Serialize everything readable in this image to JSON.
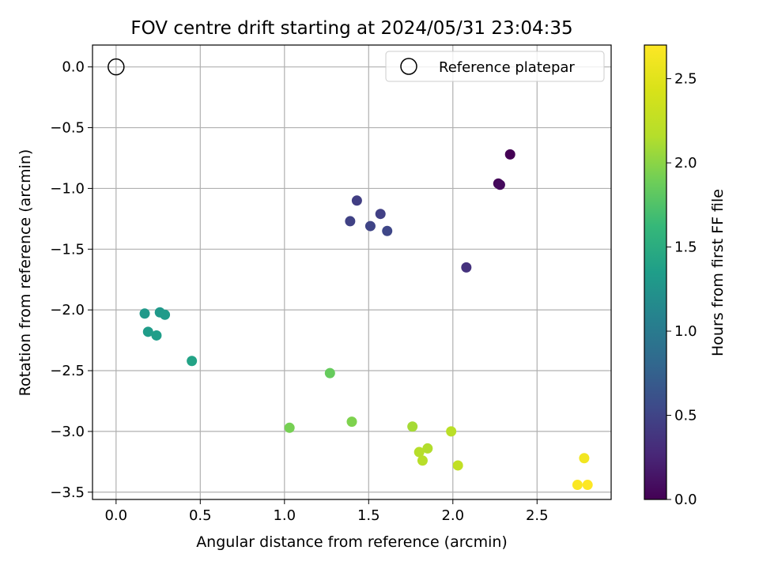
{
  "chart_data": {
    "type": "scatter",
    "title": "FOV centre drift starting at 2024/05/31 23:04:35",
    "xlabel": "Angular distance from reference (arcmin)",
    "ylabel": "Rotation from reference (arcmin)",
    "xlim": [
      -0.14,
      2.94
    ],
    "ylim": [
      -3.56,
      0.18
    ],
    "xticks": [
      0.0,
      0.5,
      1.0,
      1.5,
      2.0,
      2.5
    ],
    "xtick_labels": [
      "0.0",
      "0.5",
      "1.0",
      "1.5",
      "2.0",
      "2.5"
    ],
    "yticks": [
      0.0,
      -0.5,
      -1.0,
      -1.5,
      -2.0,
      -2.5,
      -3.0,
      -3.5
    ],
    "ytick_labels": [
      "0.0",
      "−0.5",
      "−1.0",
      "−1.5",
      "−2.0",
      "−2.5",
      "−3.0",
      "−3.5"
    ],
    "grid": true,
    "legend": {
      "position": "upper-right",
      "entries": [
        {
          "label": "Reference platepar",
          "marker": "open-circle"
        }
      ]
    },
    "reference_point": {
      "x": 0.0,
      "y": 0.0,
      "marker": "open-circle"
    },
    "colorbar": {
      "label": "Hours from first FF file",
      "colormap": "viridis",
      "range": [
        0.0,
        2.7
      ],
      "ticks": [
        0.0,
        0.5,
        1.0,
        1.5,
        2.0,
        2.5
      ],
      "tick_labels": [
        "0.0",
        "0.5",
        "1.0",
        "1.5",
        "2.0",
        "2.5"
      ]
    },
    "points": [
      {
        "x": 2.34,
        "y": -0.72,
        "hours": 0.0
      },
      {
        "x": 2.27,
        "y": -0.96,
        "hours": 0.03
      },
      {
        "x": 2.28,
        "y": -0.97,
        "hours": 0.06
      },
      {
        "x": 2.08,
        "y": -1.65,
        "hours": 0.35
      },
      {
        "x": 1.43,
        "y": -1.1,
        "hours": 0.45
      },
      {
        "x": 1.57,
        "y": -1.21,
        "hours": 0.47
      },
      {
        "x": 1.39,
        "y": -1.27,
        "hours": 0.48
      },
      {
        "x": 1.51,
        "y": -1.31,
        "hours": 0.5
      },
      {
        "x": 1.61,
        "y": -1.35,
        "hours": 0.52
      },
      {
        "x": 0.17,
        "y": -2.03,
        "hours": 1.3
      },
      {
        "x": 0.26,
        "y": -2.02,
        "hours": 1.3
      },
      {
        "x": 0.29,
        "y": -2.04,
        "hours": 1.32
      },
      {
        "x": 0.19,
        "y": -2.18,
        "hours": 1.33
      },
      {
        "x": 0.24,
        "y": -2.21,
        "hours": 1.35
      },
      {
        "x": 0.45,
        "y": -2.42,
        "hours": 1.4
      },
      {
        "x": 1.27,
        "y": -2.52,
        "hours": 1.85
      },
      {
        "x": 1.03,
        "y": -2.97,
        "hours": 1.92
      },
      {
        "x": 1.4,
        "y": -2.92,
        "hours": 1.95
      },
      {
        "x": 1.76,
        "y": -2.96,
        "hours": 2.1
      },
      {
        "x": 1.99,
        "y": -3.0,
        "hours": 2.2
      },
      {
        "x": 1.85,
        "y": -3.14,
        "hours": 2.15
      },
      {
        "x": 1.8,
        "y": -3.17,
        "hours": 2.17
      },
      {
        "x": 1.82,
        "y": -3.24,
        "hours": 2.18
      },
      {
        "x": 2.03,
        "y": -3.28,
        "hours": 2.25
      },
      {
        "x": 2.78,
        "y": -3.22,
        "hours": 2.62
      },
      {
        "x": 2.74,
        "y": -3.44,
        "hours": 2.68
      },
      {
        "x": 2.8,
        "y": -3.44,
        "hours": 2.7
      }
    ]
  }
}
